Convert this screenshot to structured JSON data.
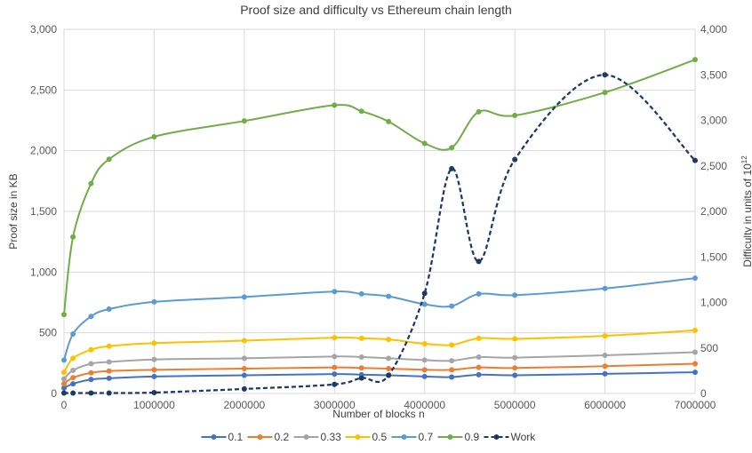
{
  "chart_data": {
    "type": "line",
    "title": "Proof size and difficulty vs Ethereum chain length",
    "xlabel": "Number of blocks n",
    "ylabel": "Proof size in KB",
    "y2label_prefix": "Difficulty in units of 10",
    "y2label_exp": "12",
    "xlim": [
      0,
      7000000
    ],
    "ylim": [
      0,
      3000
    ],
    "y2lim": [
      0,
      4000
    ],
    "x_ticks": [
      "0",
      "1000000",
      "2000000",
      "3000000",
      "4000000",
      "5000000",
      "6000000",
      "7000000"
    ],
    "y_ticks": [
      "0",
      "500",
      "1,000",
      "1,500",
      "2,000",
      "2,500",
      "3,000"
    ],
    "y2_ticks": [
      "0",
      "500",
      "1,000",
      "1,500",
      "2,000",
      "2,500",
      "3,000",
      "3,500",
      "4,000"
    ],
    "grid": true,
    "legend_position": "bottom",
    "series": [
      {
        "name": "0.1",
        "color": "#4472C4",
        "axis": "left",
        "dashed": false,
        "points": [
          [
            0,
            45
          ],
          [
            100000,
            80
          ],
          [
            300000,
            115
          ],
          [
            500000,
            125
          ],
          [
            1000000,
            140
          ],
          [
            2000000,
            150
          ],
          [
            3000000,
            160
          ],
          [
            3300000,
            155
          ],
          [
            3600000,
            150
          ],
          [
            4000000,
            140
          ],
          [
            4300000,
            135
          ],
          [
            4600000,
            155
          ],
          [
            5000000,
            150
          ],
          [
            6000000,
            162
          ],
          [
            7000000,
            175
          ]
        ]
      },
      {
        "name": "0.2",
        "color": "#ED7D31",
        "axis": "left",
        "dashed": false,
        "points": [
          [
            0,
            80
          ],
          [
            100000,
            130
          ],
          [
            300000,
            170
          ],
          [
            500000,
            185
          ],
          [
            1000000,
            195
          ],
          [
            2000000,
            205
          ],
          [
            3000000,
            215
          ],
          [
            3300000,
            210
          ],
          [
            3600000,
            205
          ],
          [
            4000000,
            195
          ],
          [
            4300000,
            195
          ],
          [
            4600000,
            215
          ],
          [
            5000000,
            210
          ],
          [
            6000000,
            225
          ],
          [
            7000000,
            245
          ]
        ]
      },
      {
        "name": "0.33",
        "color": "#A5A5A5",
        "axis": "left",
        "dashed": false,
        "points": [
          [
            0,
            120
          ],
          [
            100000,
            190
          ],
          [
            300000,
            245
          ],
          [
            500000,
            260
          ],
          [
            1000000,
            280
          ],
          [
            2000000,
            290
          ],
          [
            3000000,
            305
          ],
          [
            3300000,
            300
          ],
          [
            3600000,
            290
          ],
          [
            4000000,
            275
          ],
          [
            4300000,
            270
          ],
          [
            4600000,
            300
          ],
          [
            5000000,
            295
          ],
          [
            6000000,
            315
          ],
          [
            7000000,
            340
          ]
        ]
      },
      {
        "name": "0.5",
        "color": "#FFC000",
        "axis": "left",
        "dashed": false,
        "points": [
          [
            0,
            175
          ],
          [
            100000,
            290
          ],
          [
            300000,
            360
          ],
          [
            500000,
            390
          ],
          [
            1000000,
            415
          ],
          [
            2000000,
            435
          ],
          [
            3000000,
            460
          ],
          [
            3300000,
            455
          ],
          [
            3600000,
            445
          ],
          [
            4000000,
            410
          ],
          [
            4300000,
            400
          ],
          [
            4600000,
            455
          ],
          [
            5000000,
            450
          ],
          [
            6000000,
            475
          ],
          [
            7000000,
            520
          ]
        ]
      },
      {
        "name": "0.7",
        "color": "#5B9BD5",
        "axis": "left",
        "dashed": false,
        "points": [
          [
            0,
            275
          ],
          [
            100000,
            490
          ],
          [
            300000,
            635
          ],
          [
            500000,
            695
          ],
          [
            1000000,
            755
          ],
          [
            2000000,
            795
          ],
          [
            3000000,
            840
          ],
          [
            3300000,
            820
          ],
          [
            3600000,
            800
          ],
          [
            4000000,
            735
          ],
          [
            4300000,
            720
          ],
          [
            4600000,
            820
          ],
          [
            5000000,
            810
          ],
          [
            6000000,
            865
          ],
          [
            7000000,
            950
          ]
        ]
      },
      {
        "name": "0.9",
        "color": "#70AD47",
        "axis": "left",
        "dashed": false,
        "points": [
          [
            0,
            650
          ],
          [
            100000,
            1290
          ],
          [
            300000,
            1730
          ],
          [
            500000,
            1930
          ],
          [
            1000000,
            2115
          ],
          [
            2000000,
            2245
          ],
          [
            3000000,
            2375
          ],
          [
            3300000,
            2325
          ],
          [
            3600000,
            2240
          ],
          [
            4000000,
            2060
          ],
          [
            4300000,
            2025
          ],
          [
            4600000,
            2320
          ],
          [
            5000000,
            2290
          ],
          [
            6000000,
            2480
          ],
          [
            7000000,
            2750
          ]
        ]
      },
      {
        "name": "Work",
        "color": "#203864",
        "axis": "right",
        "dashed": true,
        "points": [
          [
            0,
            5
          ],
          [
            100000,
            5
          ],
          [
            300000,
            5
          ],
          [
            500000,
            5
          ],
          [
            1000000,
            10
          ],
          [
            2000000,
            50
          ],
          [
            3000000,
            100
          ],
          [
            3300000,
            170
          ],
          [
            3600000,
            200
          ],
          [
            4000000,
            1100
          ],
          [
            4300000,
            2470
          ],
          [
            4600000,
            1450
          ],
          [
            5000000,
            2570
          ],
          [
            6000000,
            3500
          ],
          [
            7000000,
            2560
          ]
        ]
      }
    ]
  }
}
